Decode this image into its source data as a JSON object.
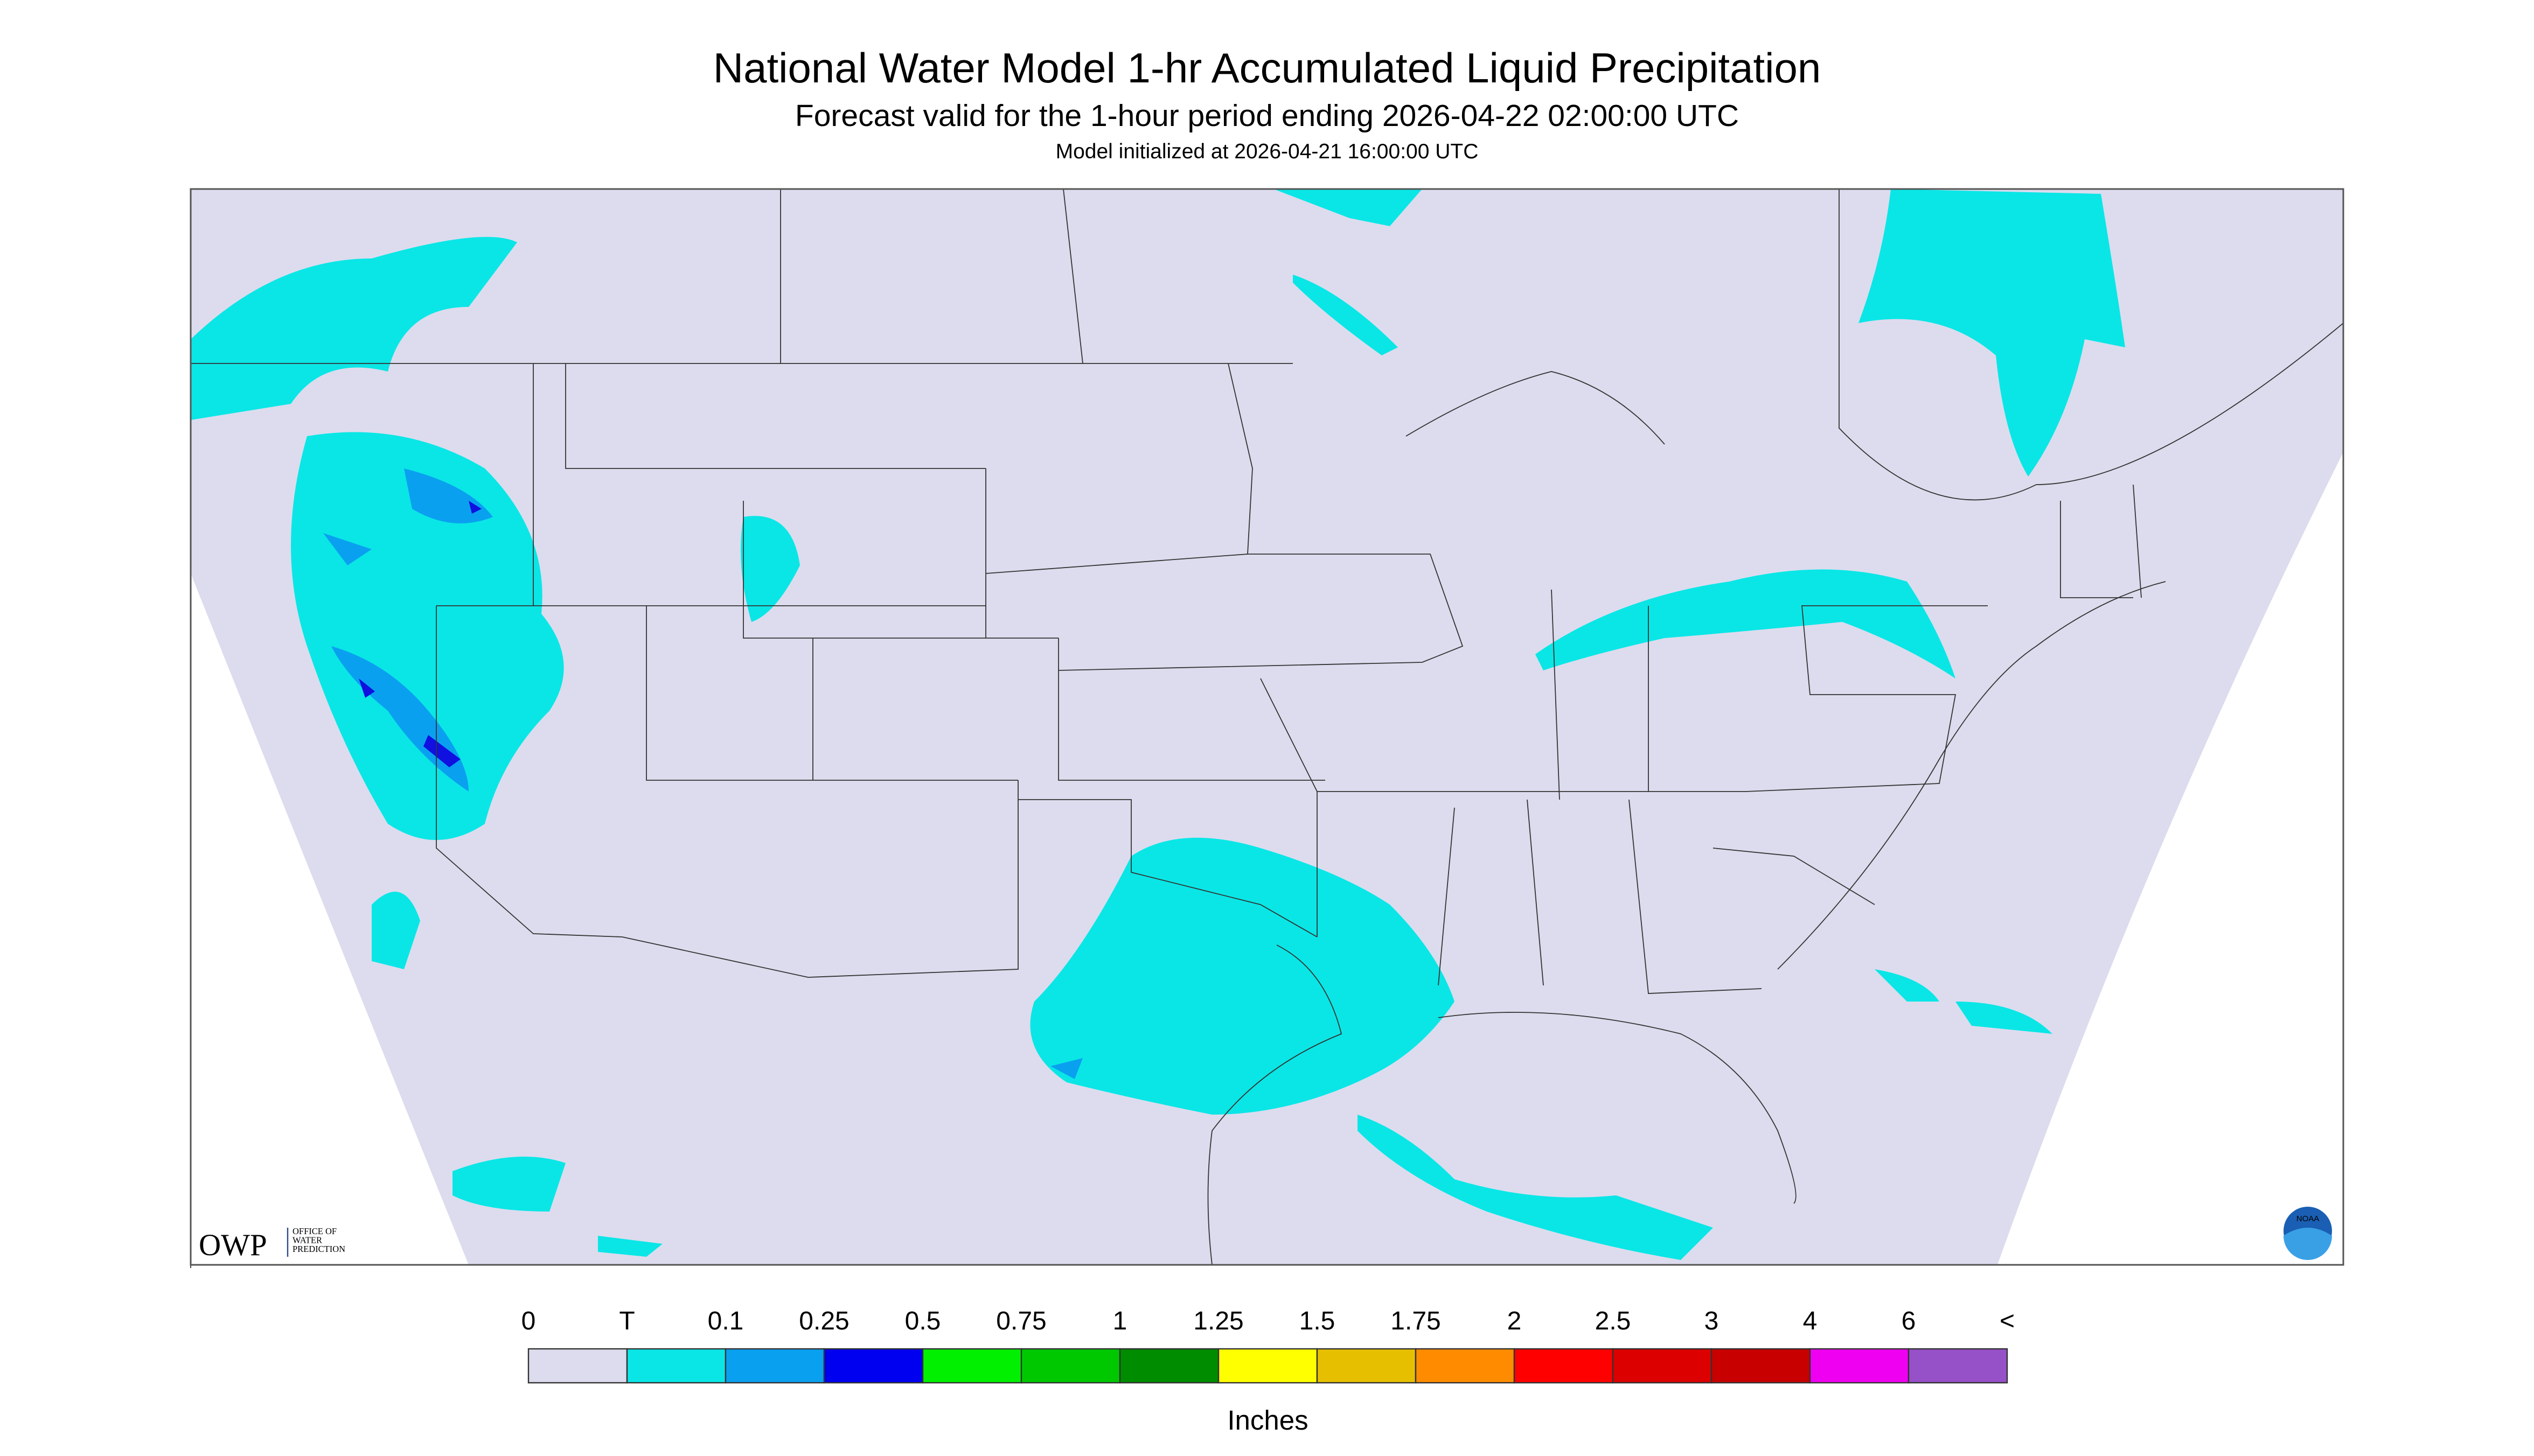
{
  "header": {
    "title": "National Water Model 1-hr Accumulated Liquid Precipitation",
    "subtitle": "Forecast valid for the 1-hour period ending 2026-04-22 02:00:00 UTC",
    "init": "Model initialized at 2026-04-21 16:00:00 UTC"
  },
  "logo": {
    "abbr": "OWP",
    "lines": [
      "OFFICE OF",
      "WATER",
      "PREDICTION"
    ]
  },
  "noaa_logo": "NOAA",
  "legend": {
    "labels": [
      "0",
      "T",
      "0.1",
      "0.25",
      "0.5",
      "0.75",
      "1",
      "1.25",
      "1.5",
      "1.75",
      "2",
      "2.5",
      "3",
      "4",
      "6",
      "<"
    ],
    "colors": [
      "#dcdcee",
      "#0ae6e6",
      "#0aa0f0",
      "#0000f0",
      "#00f000",
      "#00c800",
      "#008c00",
      "#ffff00",
      "#e6c000",
      "#ff8c00",
      "#ff0000",
      "#dc0000",
      "#c80000",
      "#f000f0",
      "#9650c8"
    ],
    "unit": "Inches"
  }
}
